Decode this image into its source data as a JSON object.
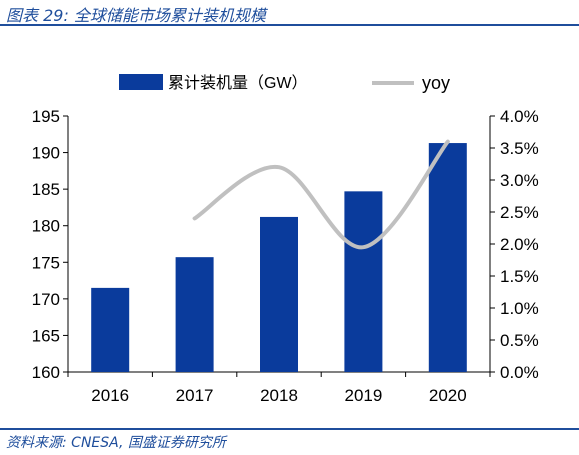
{
  "header": {
    "figure_title": "图表 29:  全球储能市场累计装机规模"
  },
  "footer": {
    "source": "资料来源: CNESA, 国盛证券研究所"
  },
  "colors": {
    "bar": "#0a3b9c",
    "line": "#c0c0c0",
    "title_text": "#1f4e9c"
  },
  "chart_data": {
    "type": "bar",
    "categories": [
      "2016",
      "2017",
      "2018",
      "2019",
      "2020"
    ],
    "series": [
      {
        "name": "累计装机量（GW）",
        "type": "bar",
        "axis": "left",
        "values": [
          171.5,
          175.7,
          181.2,
          184.7,
          191.3
        ]
      },
      {
        "name": "yoy",
        "type": "line",
        "axis": "right",
        "values": [
          null,
          0.024,
          0.032,
          0.0195,
          0.036
        ]
      }
    ],
    "y_left": {
      "min": 160,
      "max": 195,
      "step": 5,
      "ticks": [
        "160",
        "165",
        "170",
        "175",
        "180",
        "185",
        "190",
        "195"
      ]
    },
    "y_right": {
      "min": 0,
      "max": 0.04,
      "step": 0.005,
      "ticks": [
        "0.0%",
        "0.5%",
        "1.0%",
        "1.5%",
        "2.0%",
        "2.5%",
        "3.0%",
        "3.5%",
        "4.0%"
      ]
    },
    "legend_position": "top",
    "grid": false
  }
}
